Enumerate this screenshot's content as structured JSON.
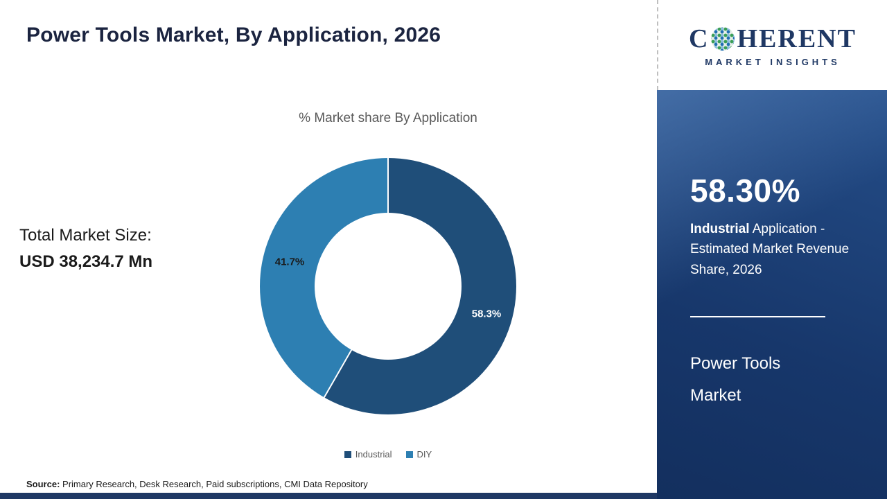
{
  "header": {
    "title": "Power Tools Market, By Application, 2026"
  },
  "logo": {
    "letter_c": "C",
    "word_rest": "HERENT",
    "subtitle": "MARKET INSIGHTS"
  },
  "stats": {
    "total_label": "Total Market Size:",
    "total_value": "USD 38,234.7 Mn"
  },
  "chart_data": {
    "type": "pie",
    "title": "% Market share By Application",
    "categories": [
      "Industrial",
      "DIY"
    ],
    "values": [
      58.3,
      41.7
    ],
    "labels": [
      "58.3%",
      "41.7%"
    ],
    "colors": [
      "#1f4e79",
      "#2d7fb2"
    ],
    "donut": true,
    "start_angle_deg": 0,
    "legend_position": "bottom"
  },
  "sidebar": {
    "share_value": "58.30%",
    "share_desc_bold": "Industrial",
    "share_desc_rest": " Application - Estimated Market Revenue Share, 2026",
    "market_name_line1": "Power Tools",
    "market_name_line2": "Market"
  },
  "footer": {
    "source_label": "Source:",
    "source_text": " Primary Research, Desk Research, Paid subscriptions, CMI Data Repository"
  }
}
